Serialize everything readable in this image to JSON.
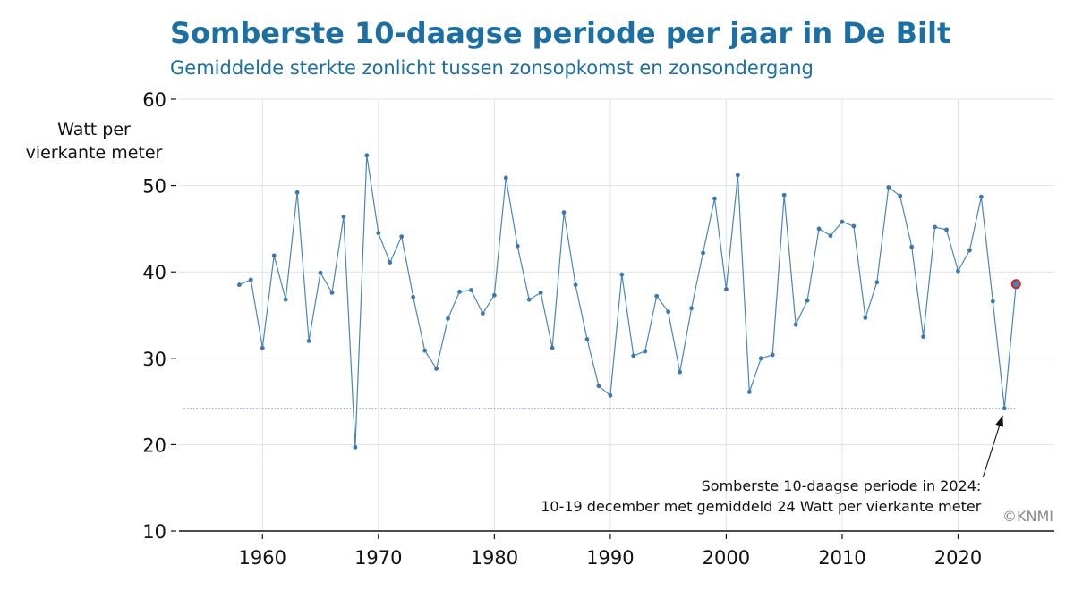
{
  "chart_data": {
    "type": "line",
    "title": "Somberste 10-daagse periode per jaar in De Bilt",
    "subtitle": "Gemiddelde sterkte zonlicht tussen zonsopkomst en zonsondergang",
    "ylabel_lines": [
      "Watt per",
      "vierkante meter"
    ],
    "xlim": [
      1952.8,
      2028.3
    ],
    "ylim": [
      10,
      60
    ],
    "x_ticks": [
      1960,
      1970,
      1980,
      1990,
      2000,
      2010,
      2020
    ],
    "x_tick_labels": [
      "1960",
      "1970",
      "1980",
      "1990",
      "2000",
      "2010",
      "2020"
    ],
    "y_ticks": [
      10,
      20,
      30,
      40,
      50,
      60
    ],
    "y_tick_labels": [
      "10",
      "20",
      "30",
      "40",
      "50",
      "60"
    ],
    "grid": true,
    "series": [
      {
        "x": [
          1958,
          1959,
          1960,
          1961,
          1962,
          1963,
          1964,
          1965,
          1966,
          1967,
          1968,
          1969,
          1970,
          1971,
          1972,
          1973,
          1974,
          1975,
          1976,
          1977,
          1978,
          1979,
          1980,
          1981,
          1982,
          1983,
          1984,
          1985,
          1986,
          1987,
          1988,
          1989,
          1990,
          1991,
          1992,
          1993,
          1994,
          1995,
          1996,
          1997,
          1998,
          1999,
          2000,
          2001,
          2002,
          2003,
          2004,
          2005,
          2006,
          2007,
          2008,
          2009,
          2010,
          2011,
          2012,
          2013,
          2014,
          2015,
          2016,
          2017,
          2018,
          2019,
          2020,
          2021,
          2022,
          2023,
          2024,
          2025
        ],
        "values": [
          38.5,
          39.1,
          31.2,
          41.9,
          36.8,
          49.2,
          32.0,
          39.9,
          37.6,
          46.4,
          19.7,
          53.5,
          44.5,
          41.1,
          44.1,
          37.1,
          30.9,
          28.8,
          34.6,
          37.7,
          37.9,
          35.2,
          37.3,
          50.9,
          43.0,
          36.8,
          37.6,
          31.2,
          46.9,
          38.5,
          32.2,
          26.8,
          25.7,
          39.7,
          30.3,
          30.8,
          37.2,
          35.4,
          28.4,
          35.8,
          42.2,
          48.5,
          38.0,
          51.2,
          26.1,
          30.0,
          30.4,
          48.9,
          33.9,
          36.7,
          45.0,
          44.2,
          45.8,
          45.3,
          34.7,
          38.8,
          49.8,
          48.8,
          42.9,
          32.5,
          45.2,
          44.9,
          40.1,
          42.5,
          48.7,
          36.6,
          24.2,
          38.6
        ]
      }
    ],
    "reference_line_value": 24.2,
    "highlight_point": {
      "x": 2025,
      "y": 38.6
    },
    "annotation": {
      "lines": [
        "Somberste 10-daagse periode in 2024:",
        "10-19 december met gemiddeld 24 Watt per vierkante meter"
      ],
      "target_x": 2024,
      "target_y": 24.2
    },
    "credit": "©KNMI",
    "colors": {
      "line": "#4a86b8",
      "point": "#3b78ad",
      "highlight_fill": "#4a86b8",
      "highlight_stroke": "#d1202a",
      "title": "#1b6fa3",
      "grid": "#dde3e9",
      "axis": "#111111"
    }
  }
}
